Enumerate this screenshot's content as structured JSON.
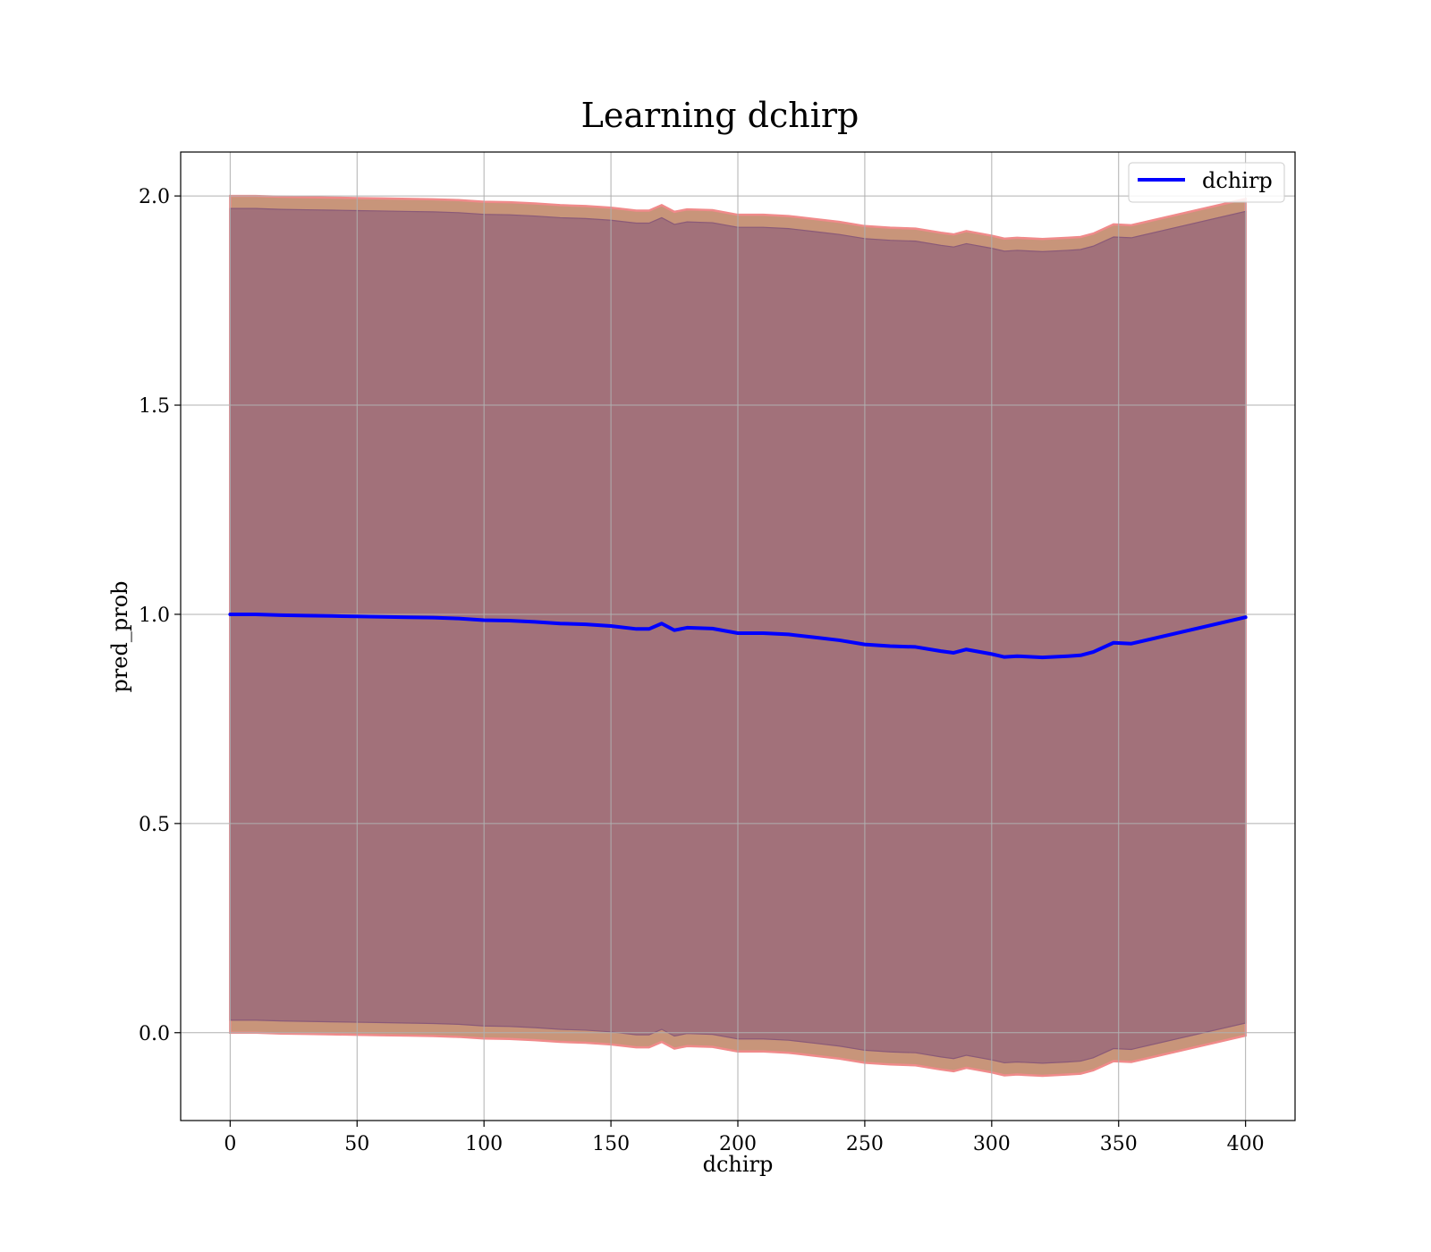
{
  "chart_data": {
    "type": "line",
    "title": "Learning dchirp",
    "xlabel": "dchirp",
    "ylabel": "pred_prob",
    "xlim": [
      -19.5,
      419.5
    ],
    "ylim": [
      -0.21,
      2.105
    ],
    "x_ticks": [
      0,
      50,
      100,
      150,
      200,
      250,
      300,
      350,
      400
    ],
    "x_tick_labels": [
      "0",
      "50",
      "100",
      "150",
      "200",
      "250",
      "300",
      "350",
      "400"
    ],
    "y_ticks": [
      0.0,
      0.5,
      1.0,
      1.5,
      2.0
    ],
    "y_tick_labels": [
      "0.0",
      "0.5",
      "1.0",
      "1.5",
      "2.0"
    ],
    "grid": true,
    "legend": {
      "position": "top-right",
      "entries": [
        "dchirp"
      ]
    },
    "series": [
      {
        "name": "dchirp",
        "color": "#0000ff",
        "x": [
          0,
          10,
          20,
          30,
          40,
          50,
          60,
          70,
          80,
          90,
          100,
          110,
          120,
          130,
          140,
          150,
          160,
          165,
          170,
          175,
          180,
          190,
          200,
          210,
          220,
          230,
          240,
          250,
          260,
          270,
          280,
          285,
          290,
          300,
          305,
          310,
          320,
          330,
          335,
          340,
          348,
          355,
          400
        ],
        "y": [
          1.0,
          1.0,
          0.998,
          0.997,
          0.996,
          0.995,
          0.994,
          0.993,
          0.992,
          0.99,
          0.986,
          0.985,
          0.982,
          0.978,
          0.976,
          0.972,
          0.965,
          0.965,
          0.978,
          0.962,
          0.968,
          0.966,
          0.955,
          0.955,
          0.952,
          0.945,
          0.938,
          0.928,
          0.924,
          0.922,
          0.912,
          0.908,
          0.916,
          0.905,
          0.898,
          0.9,
          0.897,
          0.9,
          0.902,
          0.91,
          0.932,
          0.93,
          0.993
        ]
      }
    ],
    "bands": [
      {
        "label": "outer band",
        "fill": "#c8957a",
        "edge": "#f08a8a",
        "upper": [
          2.0,
          2.0,
          1.998,
          1.997,
          1.996,
          1.995,
          1.994,
          1.993,
          1.992,
          1.99,
          1.986,
          1.985,
          1.982,
          1.978,
          1.976,
          1.972,
          1.965,
          1.965,
          1.978,
          1.962,
          1.968,
          1.966,
          1.955,
          1.955,
          1.952,
          1.945,
          1.938,
          1.928,
          1.924,
          1.922,
          1.912,
          1.908,
          1.916,
          1.905,
          1.898,
          1.9,
          1.897,
          1.9,
          1.902,
          1.91,
          1.932,
          1.93,
          1.993
        ],
        "lower": [
          0.0,
          0.0,
          -0.002,
          -0.003,
          -0.004,
          -0.005,
          -0.006,
          -0.007,
          -0.008,
          -0.01,
          -0.014,
          -0.015,
          -0.018,
          -0.022,
          -0.024,
          -0.028,
          -0.035,
          -0.035,
          -0.022,
          -0.038,
          -0.032,
          -0.034,
          -0.045,
          -0.045,
          -0.048,
          -0.055,
          -0.062,
          -0.072,
          -0.076,
          -0.078,
          -0.088,
          -0.092,
          -0.084,
          -0.095,
          -0.102,
          -0.1,
          -0.103,
          -0.1,
          -0.098,
          -0.09,
          -0.068,
          -0.07,
          -0.007
        ]
      },
      {
        "label": "inner band",
        "fill": "#a2717a",
        "edge": "#8a5a78",
        "upper": [
          1.97,
          1.97,
          1.968,
          1.967,
          1.966,
          1.965,
          1.964,
          1.963,
          1.962,
          1.96,
          1.956,
          1.955,
          1.952,
          1.948,
          1.946,
          1.942,
          1.935,
          1.935,
          1.948,
          1.932,
          1.938,
          1.936,
          1.925,
          1.925,
          1.922,
          1.915,
          1.908,
          1.898,
          1.894,
          1.892,
          1.882,
          1.878,
          1.886,
          1.875,
          1.868,
          1.87,
          1.867,
          1.87,
          1.872,
          1.88,
          1.902,
          1.9,
          1.963
        ],
        "lower": [
          0.03,
          0.03,
          0.028,
          0.027,
          0.026,
          0.025,
          0.024,
          0.023,
          0.022,
          0.02,
          0.016,
          0.015,
          0.012,
          0.008,
          0.006,
          0.002,
          -0.005,
          -0.005,
          0.008,
          -0.008,
          -0.002,
          -0.004,
          -0.015,
          -0.015,
          -0.018,
          -0.025,
          -0.032,
          -0.042,
          -0.046,
          -0.048,
          -0.058,
          -0.062,
          -0.054,
          -0.065,
          -0.072,
          -0.07,
          -0.073,
          -0.07,
          -0.068,
          -0.06,
          -0.038,
          -0.04,
          0.023
        ]
      }
    ]
  }
}
